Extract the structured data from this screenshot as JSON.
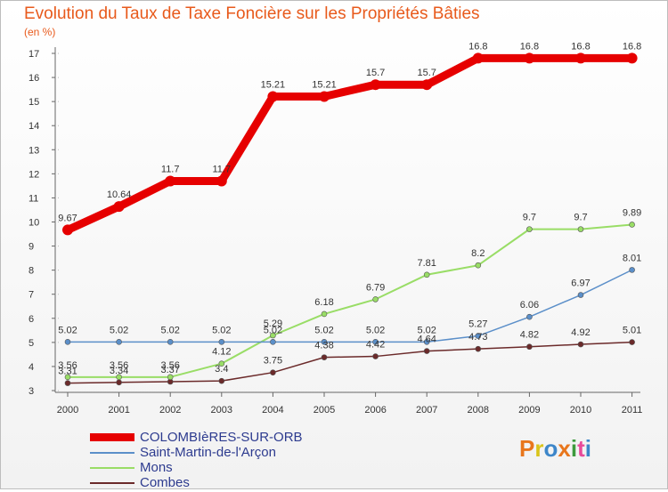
{
  "header": {
    "title": "Evolution du Taux de Taxe Foncière sur les Propriétés Bâties",
    "subtitle": "(en %)"
  },
  "logo": {
    "text": "Proxiti",
    "colors": [
      "#e8761c",
      "#d9c41a",
      "#3d86c9",
      "#e8761c",
      "#3d9a3d",
      "#e84a9a",
      "#3d86c9"
    ]
  },
  "chart_data": {
    "type": "line",
    "title": "Evolution du Taux de Taxe Foncière sur les Propriétés Bâties",
    "ylabel": "(en %)",
    "x": [
      "2000",
      "2001",
      "2002",
      "2003",
      "2004",
      "2005",
      "2006",
      "2007",
      "2008",
      "2009",
      "2010",
      "2011"
    ],
    "ylim": [
      3,
      17
    ],
    "yticks": [
      3,
      4,
      5,
      6,
      7,
      8,
      9,
      10,
      11,
      12,
      13,
      14,
      15,
      16,
      17
    ],
    "legend_position": "bottom-left",
    "series": [
      {
        "name": "COLOMBIèRES-SUR-ORB",
        "color": "#e60000",
        "values": [
          9.67,
          10.64,
          11.7,
          11.7,
          15.21,
          15.21,
          15.7,
          15.7,
          16.8,
          16.8,
          16.8,
          16.8
        ],
        "labels": [
          "9.67",
          "10.64",
          "11.7",
          "11.7",
          "15.21",
          "15.21",
          "15.7",
          "15.7",
          "16.8",
          "16.8",
          "16.8",
          "16.8"
        ]
      },
      {
        "name": "Saint-Martin-de-l'Arçon",
        "color": "#5b8fc9",
        "values": [
          5.02,
          5.02,
          5.02,
          5.02,
          5.02,
          5.02,
          5.02,
          5.02,
          5.27,
          6.06,
          6.97,
          8.01
        ],
        "labels": [
          "5.02",
          "5.02",
          "5.02",
          "5.02",
          "5.02",
          "5.02",
          "5.02",
          "5.02",
          "5.27",
          "6.06",
          "6.97",
          "8.01"
        ]
      },
      {
        "name": "Mons",
        "color": "#99dd66",
        "values": [
          3.56,
          3.56,
          3.56,
          4.12,
          5.29,
          6.18,
          6.79,
          7.81,
          8.2,
          9.7,
          9.7,
          9.89
        ],
        "labels": [
          "3.56",
          "3.56",
          "3.56",
          "4.12",
          "5.29",
          "6.18",
          "6.79",
          "7.81",
          "8.2",
          "9.7",
          "9.7",
          "9.89"
        ]
      },
      {
        "name": "Combes",
        "color": "#6b2a2a",
        "values": [
          3.31,
          3.34,
          3.37,
          3.4,
          3.75,
          4.38,
          4.42,
          4.64,
          4.73,
          4.82,
          4.92,
          5.01
        ],
        "labels": [
          "3.31",
          "3.34",
          "3.37",
          "3.4",
          "3.75",
          "4.38",
          "4.42",
          "4.64",
          "4.73",
          "4.82",
          "4.92",
          "5.01"
        ]
      }
    ]
  }
}
